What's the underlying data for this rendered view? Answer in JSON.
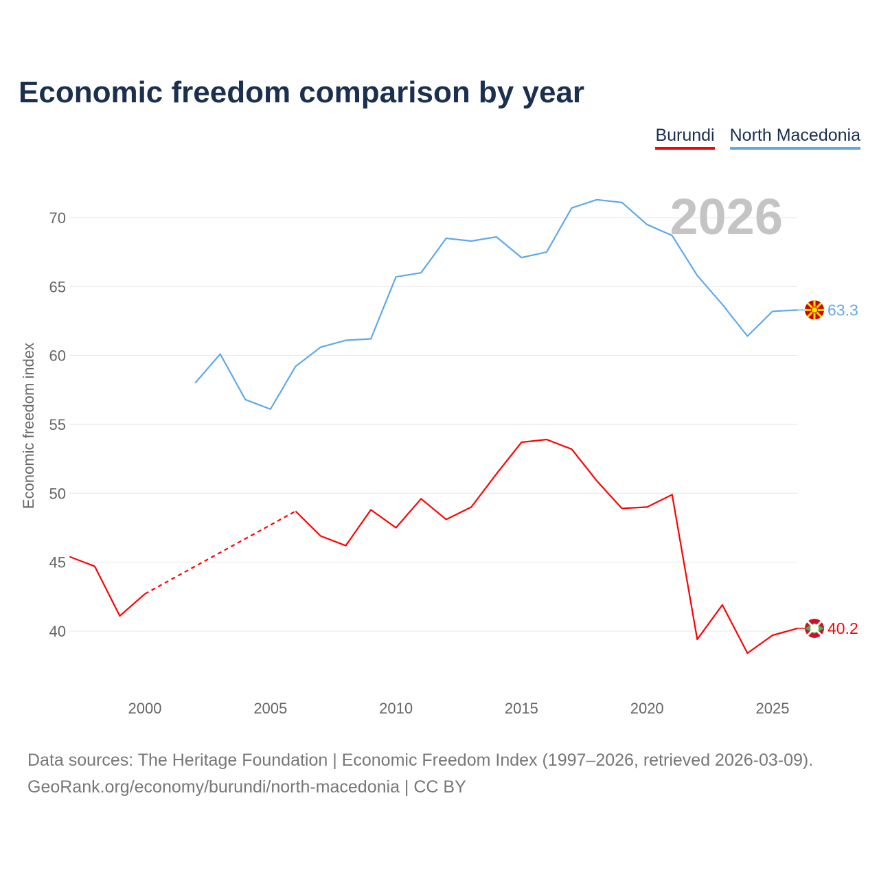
{
  "chart_data": {
    "type": "line",
    "title": "Economic freedom comparison by year",
    "ylabel": "Economic freedom index",
    "xlabel": "",
    "xlim": [
      1997,
      2026
    ],
    "ylim": [
      36,
      72.5
    ],
    "x_ticks": [
      2000,
      2005,
      2010,
      2015,
      2020,
      2025
    ],
    "y_ticks": [
      40,
      45,
      50,
      55,
      60,
      65,
      70
    ],
    "year_watermark": "2026",
    "legend_position": "top-right",
    "series": [
      {
        "name": "Burundi",
        "color": "#ff0000",
        "end_label": "40.2",
        "dashed_gap": [
          2000,
          2006
        ],
        "points": [
          [
            1997,
            45.4
          ],
          [
            1998,
            44.7
          ],
          [
            1999,
            41.1
          ],
          [
            2000,
            42.7
          ],
          [
            2006,
            48.7
          ],
          [
            2007,
            46.9
          ],
          [
            2008,
            46.2
          ],
          [
            2009,
            48.8
          ],
          [
            2010,
            47.5
          ],
          [
            2011,
            49.6
          ],
          [
            2012,
            48.1
          ],
          [
            2013,
            49.0
          ],
          [
            2014,
            51.4
          ],
          [
            2015,
            53.7
          ],
          [
            2016,
            53.9
          ],
          [
            2017,
            53.2
          ],
          [
            2018,
            50.9
          ],
          [
            2019,
            48.9
          ],
          [
            2020,
            49.0
          ],
          [
            2021,
            49.9
          ],
          [
            2022,
            39.4
          ],
          [
            2023,
            41.9
          ],
          [
            2024,
            38.4
          ],
          [
            2025,
            39.7
          ],
          [
            2026,
            40.2
          ]
        ]
      },
      {
        "name": "North Macedonia",
        "color": "#5ea8ea",
        "end_label": "63.3",
        "points": [
          [
            2002,
            58.0
          ],
          [
            2003,
            60.1
          ],
          [
            2004,
            56.8
          ],
          [
            2005,
            56.1
          ],
          [
            2006,
            59.2
          ],
          [
            2007,
            60.6
          ],
          [
            2008,
            61.1
          ],
          [
            2009,
            61.2
          ],
          [
            2010,
            65.7
          ],
          [
            2011,
            66.0
          ],
          [
            2012,
            68.5
          ],
          [
            2013,
            68.3
          ],
          [
            2014,
            68.6
          ],
          [
            2015,
            67.1
          ],
          [
            2016,
            67.5
          ],
          [
            2017,
            70.7
          ],
          [
            2018,
            71.3
          ],
          [
            2019,
            71.1
          ],
          [
            2020,
            69.5
          ],
          [
            2021,
            68.7
          ],
          [
            2022,
            65.8
          ],
          [
            2023,
            63.7
          ],
          [
            2024,
            61.4
          ],
          [
            2025,
            63.2
          ],
          [
            2026,
            63.3
          ]
        ]
      }
    ]
  },
  "source": {
    "line1": "Data sources: The Heritage Foundation | Economic Freedom Index (1997–2026, retrieved 2026-03-09).",
    "line2": "GeoRank.org/economy/burundi/north-macedonia | CC BY"
  }
}
